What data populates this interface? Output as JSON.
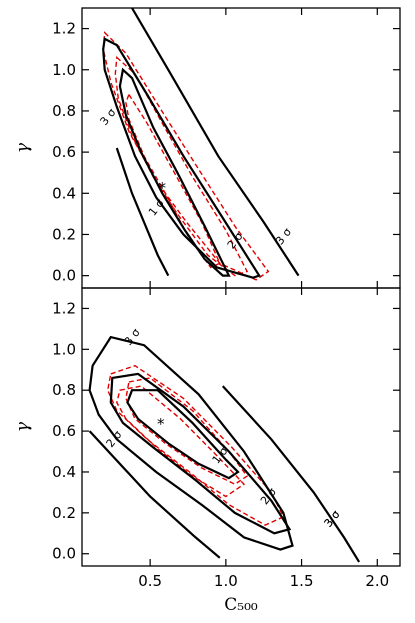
{
  "chart_data": [
    {
      "type": "contour",
      "xlabel": "",
      "ylabel": "γ",
      "xlim": [
        0.05,
        2.15
      ],
      "ylim": [
        -0.06,
        1.3
      ],
      "yticks": [
        "0.0",
        "0.2",
        "0.4",
        "0.6",
        "0.8",
        "1.0",
        "1.2"
      ],
      "best_fit": {
        "x": 0.58,
        "y": 0.44,
        "marker": "*"
      },
      "contours": [
        {
          "level": "1 σ",
          "label": "1 σ",
          "label_at": [
            0.56,
            0.32
          ],
          "points": [
            [
              0.32,
              1.0
            ],
            [
              0.38,
              0.96
            ],
            [
              0.52,
              0.72
            ],
            [
              0.68,
              0.5
            ],
            [
              0.86,
              0.24
            ],
            [
              1.02,
              0.0
            ],
            [
              0.98,
              0.0
            ],
            [
              0.86,
              0.08
            ],
            [
              0.73,
              0.22
            ],
            [
              0.58,
              0.4
            ],
            [
              0.44,
              0.6
            ],
            [
              0.34,
              0.78
            ],
            [
              0.3,
              0.92
            ]
          ]
        },
        {
          "level": "2 σ",
          "label": "2 σ",
          "label_at": [
            1.08,
            0.16
          ],
          "points": [
            [
              0.2,
              1.15
            ],
            [
              0.28,
              1.12
            ],
            [
              0.48,
              0.88
            ],
            [
              0.72,
              0.58
            ],
            [
              0.98,
              0.28
            ],
            [
              1.22,
              0.0
            ],
            [
              1.18,
              -0.01
            ],
            [
              0.94,
              0.04
            ],
            [
              0.72,
              0.2
            ],
            [
              0.54,
              0.38
            ],
            [
              0.4,
              0.58
            ],
            [
              0.28,
              0.82
            ],
            [
              0.2,
              1.0
            ],
            [
              0.19,
              1.1
            ]
          ]
        },
        {
          "level": "3 σ",
          "label": "3 σ",
          "label_at": [
            1.4,
            0.18
          ],
          "points": [
            [
              0.38,
              1.3
            ],
            [
              0.62,
              1.0
            ],
            [
              0.95,
              0.58
            ],
            [
              1.25,
              0.26
            ],
            [
              1.48,
              0.0
            ]
          ],
          "open": true
        },
        {
          "level": "3 σ",
          "label": "3 σ",
          "label_at": [
            0.24,
            0.76
          ],
          "points": [
            [
              0.28,
              0.62
            ],
            [
              0.38,
              0.4
            ],
            [
              0.55,
              0.1
            ],
            [
              0.62,
              0.0
            ]
          ],
          "open": true
        }
      ],
      "dashed": [
        {
          "color": "#e00000",
          "points": [
            [
              0.36,
              0.88
            ],
            [
              0.48,
              0.74
            ],
            [
              0.66,
              0.5
            ],
            [
              0.84,
              0.26
            ],
            [
              0.96,
              0.06
            ],
            [
              0.9,
              0.04
            ],
            [
              0.76,
              0.18
            ],
            [
              0.6,
              0.4
            ],
            [
              0.46,
              0.58
            ],
            [
              0.36,
              0.76
            ],
            [
              0.34,
              0.84
            ]
          ]
        },
        {
          "color": "#e00000",
          "points": [
            [
              0.28,
              1.06
            ],
            [
              0.4,
              0.98
            ],
            [
              0.58,
              0.74
            ],
            [
              0.78,
              0.48
            ],
            [
              1.0,
              0.22
            ],
            [
              1.14,
              0.02
            ],
            [
              1.06,
              0.0
            ],
            [
              0.88,
              0.1
            ],
            [
              0.68,
              0.3
            ],
            [
              0.52,
              0.48
            ],
            [
              0.38,
              0.68
            ],
            [
              0.29,
              0.86
            ],
            [
              0.27,
              0.98
            ]
          ]
        },
        {
          "color": "#e00000",
          "points": [
            [
              0.2,
              1.18
            ],
            [
              0.34,
              1.08
            ],
            [
              0.56,
              0.82
            ],
            [
              0.8,
              0.54
            ],
            [
              1.06,
              0.24
            ],
            [
              1.28,
              0.02
            ],
            [
              1.2,
              -0.02
            ],
            [
              0.96,
              0.06
            ],
            [
              0.74,
              0.26
            ],
            [
              0.54,
              0.46
            ],
            [
              0.36,
              0.7
            ],
            [
              0.24,
              0.94
            ],
            [
              0.19,
              1.1
            ]
          ]
        }
      ]
    },
    {
      "type": "contour",
      "xlabel": "C₅₀₀",
      "ylabel": "γ",
      "xlim": [
        0.05,
        2.15
      ],
      "ylim": [
        -0.06,
        1.3
      ],
      "xticks": [
        "0.5",
        "1.0",
        "1.5",
        "2.0"
      ],
      "yticks": [
        "0.0",
        "0.2",
        "0.4",
        "0.6",
        "0.8",
        "1.0",
        "1.2"
      ],
      "best_fit": {
        "x": 0.57,
        "y": 0.65,
        "marker": "*"
      },
      "contours": [
        {
          "level": "1 σ",
          "label": "1 σ",
          "label_at": [
            0.98,
            0.47
          ],
          "points": [
            [
              0.38,
              0.8
            ],
            [
              0.55,
              0.8
            ],
            [
              0.78,
              0.64
            ],
            [
              1.0,
              0.46
            ],
            [
              1.08,
              0.4
            ],
            [
              1.02,
              0.37
            ],
            [
              0.82,
              0.44
            ],
            [
              0.62,
              0.54
            ],
            [
              0.42,
              0.66
            ],
            [
              0.35,
              0.74
            ]
          ]
        },
        {
          "level": "2 σ",
          "label": "2 σ",
          "label_at": [
            1.3,
            0.27
          ],
          "points": [
            [
              0.25,
              0.86
            ],
            [
              0.42,
              0.88
            ],
            [
              0.72,
              0.72
            ],
            [
              1.02,
              0.5
            ],
            [
              1.3,
              0.26
            ],
            [
              1.42,
              0.12
            ],
            [
              1.32,
              0.1
            ],
            [
              1.06,
              0.2
            ],
            [
              0.8,
              0.36
            ],
            [
              0.52,
              0.52
            ],
            [
              0.32,
              0.64
            ],
            [
              0.24,
              0.74
            ]
          ]
        },
        {
          "level": "2 σ",
          "label": "2 σ",
          "label_at": [
            0.28,
            0.55
          ],
          "points": [],
          "open": true
        },
        {
          "level": "3 σ",
          "label": "3 σ",
          "label_at": [
            0.4,
            1.05
          ],
          "points": [
            [
              0.12,
              0.92
            ],
            [
              0.24,
              1.06
            ],
            [
              0.46,
              1.02
            ],
            [
              0.82,
              0.78
            ],
            [
              1.12,
              0.5
            ],
            [
              1.38,
              0.2
            ],
            [
              1.44,
              0.04
            ],
            [
              1.36,
              0.02
            ],
            [
              1.12,
              0.08
            ],
            [
              0.84,
              0.24
            ],
            [
              0.54,
              0.4
            ],
            [
              0.28,
              0.56
            ],
            [
              0.16,
              0.68
            ],
            [
              0.1,
              0.8
            ]
          ]
        },
        {
          "level": "3 σ",
          "label": "3 σ",
          "label_at": [
            1.72,
            0.16
          ],
          "points": [
            [
              0.1,
              0.6
            ],
            [
              0.5,
              0.28
            ],
            [
              0.8,
              0.08
            ],
            [
              0.96,
              -0.02
            ]
          ],
          "open": true
        },
        {
          "level": "3 σ",
          "label": "3 σ",
          "label_at": [
            1.72,
            0.16
          ],
          "points": [
            [
              0.98,
              0.82
            ],
            [
              1.3,
              0.56
            ],
            [
              1.58,
              0.3
            ],
            [
              1.78,
              0.08
            ],
            [
              1.88,
              -0.04
            ]
          ],
          "open": true
        }
      ],
      "dashed": [
        {
          "color": "#e00000",
          "points": [
            [
              0.36,
              0.84
            ],
            [
              0.5,
              0.86
            ],
            [
              0.78,
              0.7
            ],
            [
              1.02,
              0.5
            ],
            [
              1.14,
              0.38
            ],
            [
              1.06,
              0.34
            ],
            [
              0.84,
              0.42
            ],
            [
              0.6,
              0.54
            ],
            [
              0.4,
              0.66
            ],
            [
              0.34,
              0.76
            ]
          ]
        },
        {
          "color": "#e00000",
          "points": [
            [
              0.3,
              0.8
            ],
            [
              0.44,
              0.82
            ],
            [
              0.7,
              0.66
            ],
            [
              0.94,
              0.48
            ],
            [
              1.12,
              0.34
            ],
            [
              1.0,
              0.28
            ],
            [
              0.78,
              0.38
            ],
            [
              0.54,
              0.52
            ],
            [
              0.34,
              0.66
            ],
            [
              0.28,
              0.74
            ]
          ]
        },
        {
          "color": "#e00000",
          "points": [
            [
              0.24,
              0.88
            ],
            [
              0.4,
              0.92
            ],
            [
              0.72,
              0.76
            ],
            [
              1.04,
              0.52
            ],
            [
              1.3,
              0.3
            ],
            [
              1.38,
              0.18
            ],
            [
              1.26,
              0.14
            ],
            [
              1.02,
              0.24
            ],
            [
              0.76,
              0.4
            ],
            [
              0.48,
              0.56
            ],
            [
              0.28,
              0.7
            ],
            [
              0.22,
              0.8
            ]
          ]
        }
      ]
    }
  ]
}
